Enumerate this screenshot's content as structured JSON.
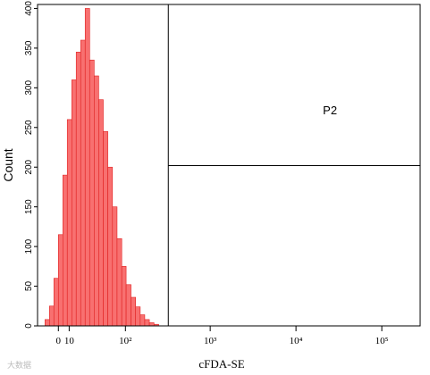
{
  "chart_data": {
    "type": "histogram",
    "xlabel": "cFDA-SE",
    "ylabel": "Count",
    "xscale": "asinh",
    "xscale_width": 34,
    "xlim": [
      -20,
      280000
    ],
    "xticks": [
      0,
      10,
      {
        "value": 100,
        "label": "10²"
      },
      {
        "value": 1000,
        "label": "10³"
      },
      {
        "value": 10000,
        "label": "10⁴"
      },
      {
        "value": 100000,
        "label": "10⁵"
      }
    ],
    "ylim": [
      0,
      405
    ],
    "yticks": [
      0,
      50,
      100,
      150,
      200,
      250,
      300,
      350,
      400
    ],
    "color": "#f87070",
    "edge_color": "#e02020",
    "bins": [
      -12.5,
      -8.2,
      -4.1,
      0,
      4.1,
      8.2,
      12.5,
      16.9,
      21.6,
      26.6,
      32,
      37.9,
      44.4,
      51.6,
      59.6,
      68.6,
      78.6,
      90,
      102,
      117,
      133,
      151,
      171,
      194,
      220,
      250
    ],
    "values": [
      8,
      25,
      60,
      115,
      190,
      260,
      310,
      345,
      360,
      400,
      335,
      315,
      285,
      245,
      200,
      150,
      110,
      75,
      52,
      36,
      24,
      14,
      8,
      4,
      2
    ],
    "gate": {
      "name": "P2",
      "x": 324,
      "y": 202
    },
    "watermark": "大数据"
  }
}
